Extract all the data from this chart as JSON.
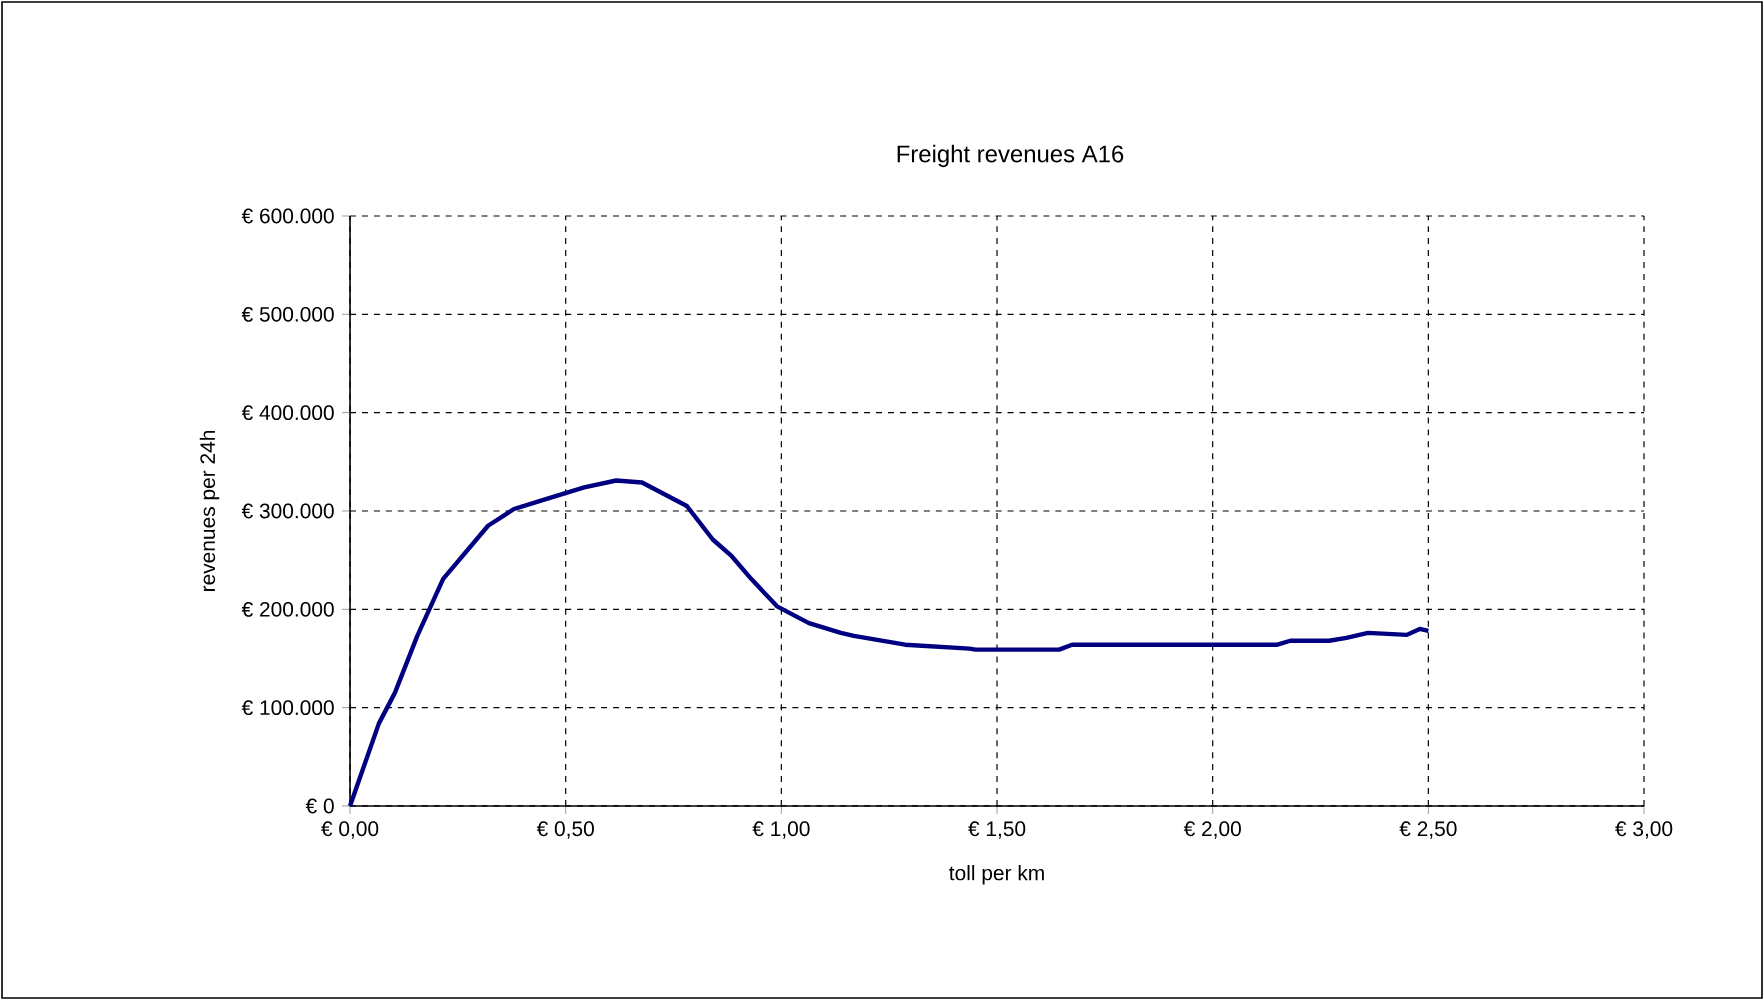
{
  "chart_data": {
    "type": "line",
    "title": "Freight revenues A16",
    "xlabel": "toll per km",
    "ylabel": "revenues per 24h",
    "x": [
      0,
      0.067,
      0.104,
      0.156,
      0.216,
      0.32,
      0.38,
      0.454,
      0.543,
      0.617,
      0.677,
      0.781,
      0.841,
      0.885,
      0.93,
      0.99,
      1.064,
      1.138,
      1.168,
      1.287,
      1.436,
      1.45,
      1.644,
      1.674,
      2.15,
      2.18,
      2.27,
      2.31,
      2.36,
      2.45,
      2.48,
      2.5
    ],
    "series": [
      {
        "color": "#000080",
        "values": [
          0,
          84000,
          115000,
          173000,
          231000,
          285000,
          302000,
          312000,
          324000,
          331000,
          329000,
          305000,
          271000,
          254000,
          231000,
          203000,
          186000,
          176000,
          173000,
          164000,
          160000,
          159000,
          159000,
          164000,
          164000,
          168000,
          168000,
          171000,
          176000,
          174000,
          180000,
          178000
        ]
      }
    ],
    "xlim": [
      0,
      3
    ],
    "ylim": [
      0,
      600000
    ],
    "xticks": [
      {
        "value": 0,
        "label": "€ 0,00"
      },
      {
        "value": 0.5,
        "label": "€ 0,50"
      },
      {
        "value": 1,
        "label": "€ 1,00"
      },
      {
        "value": 1.5,
        "label": "€ 1,50"
      },
      {
        "value": 2,
        "label": "€ 2,00"
      },
      {
        "value": 2.5,
        "label": "€ 2,50"
      },
      {
        "value": 3,
        "label": "€ 3,00"
      }
    ],
    "yticks": [
      {
        "value": 0,
        "label": "€ 0"
      },
      {
        "value": 100000,
        "label": "€ 100.000"
      },
      {
        "value": 200000,
        "label": "€ 200.000"
      },
      {
        "value": 300000,
        "label": "€ 300.000"
      },
      {
        "value": 400000,
        "label": "€ 400.000"
      },
      {
        "value": 500000,
        "label": "€ 500.000"
      },
      {
        "value": 600000,
        "label": "€ 600.000"
      }
    ],
    "grid": true,
    "line_style": "solid",
    "marker": "none"
  }
}
